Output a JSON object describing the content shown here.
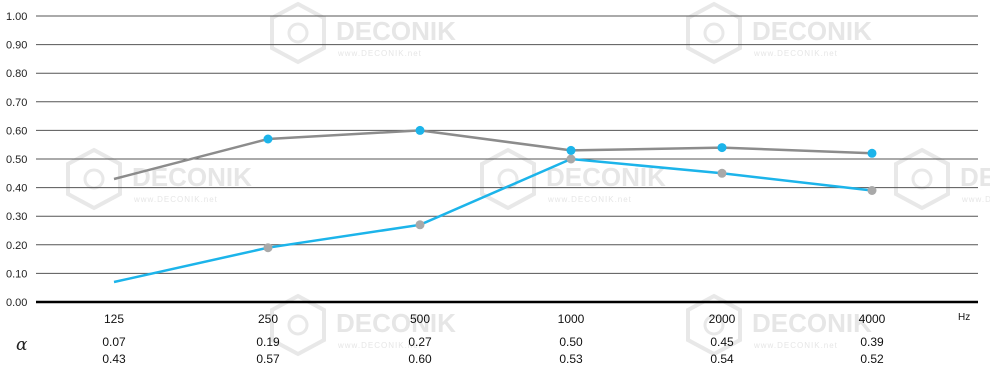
{
  "watermark": {
    "brand": "DECONIK",
    "site": "www.DECONIK.net"
  },
  "chart_data": {
    "type": "line",
    "categories": [
      "125",
      "250",
      "500",
      "1000",
      "2000",
      "4000"
    ],
    "x_unit_label": "Hz",
    "y_ticks": [
      "0.00",
      "0.10",
      "0.20",
      "0.30",
      "0.40",
      "0.50",
      "0.60",
      "0.70",
      "0.80",
      "0.90",
      "1.00"
    ],
    "ylim": [
      0,
      1
    ],
    "grid": true,
    "row_symbol": "α",
    "series": [
      {
        "values": [
          0.07,
          0.19,
          0.27,
          0.5,
          0.45,
          0.39
        ],
        "line_color": "#1cb4ea",
        "marker_color": "#a9a9a9"
      },
      {
        "values": [
          0.43,
          0.57,
          0.6,
          0.53,
          0.54,
          0.52
        ],
        "line_color": "#8c8c8c",
        "marker_color": "#1cb4ea"
      }
    ],
    "value_rows": [
      [
        "0.07",
        "0.19",
        "0.27",
        "0.50",
        "0.45",
        "0.39"
      ],
      [
        "0.43",
        "0.57",
        "0.60",
        "0.53",
        "0.54",
        "0.52"
      ]
    ]
  }
}
